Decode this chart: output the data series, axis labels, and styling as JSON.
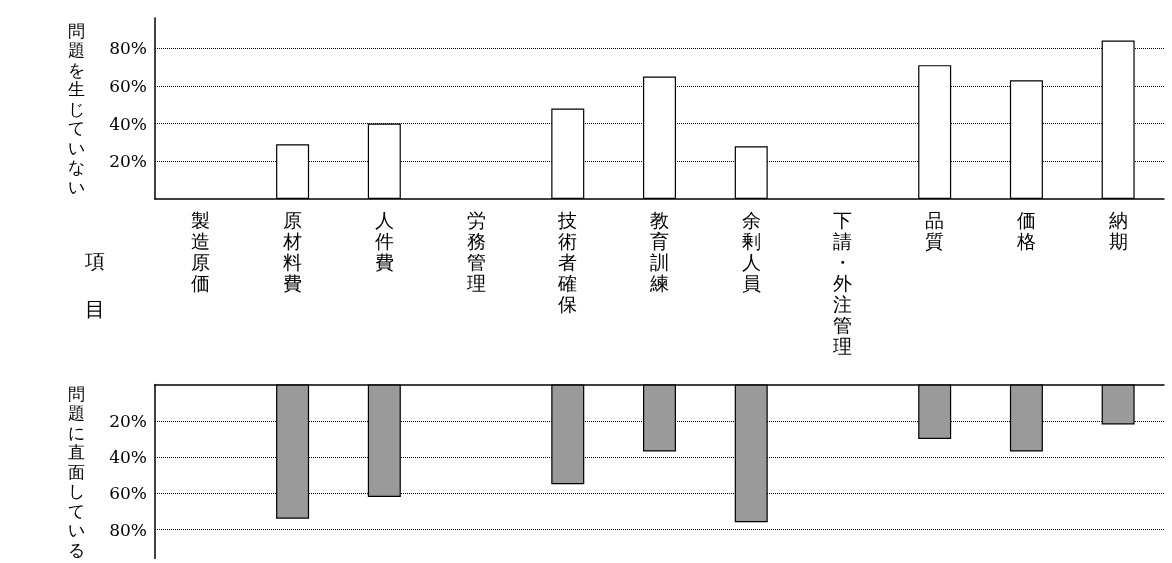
{
  "chart_data": [
    {
      "type": "bar",
      "ylabel": "問題を生じていない",
      "xlabel": "項目",
      "categories": [
        "製造原価",
        "原材料費",
        "人件費",
        "労務管理",
        "技術者確保",
        "教育訓練",
        "余剰人員",
        "下請・外注管理",
        "品質",
        "価格",
        "納期"
      ],
      "values": [
        null,
        29,
        40,
        null,
        48,
        65,
        28,
        null,
        71,
        63,
        84
      ],
      "color": "#ffffff",
      "ylim": [
        0,
        96
      ],
      "yticks": [
        {
          "value": 20,
          "label": "20%"
        },
        {
          "value": 40,
          "label": "40%"
        },
        {
          "value": 60,
          "label": "60%"
        },
        {
          "value": 80,
          "label": "80%"
        }
      ],
      "grid": "y"
    },
    {
      "type": "bar",
      "ylabel": "問題に直面している",
      "categories": [
        "製造原価",
        "原材料費",
        "人件費",
        "労務管理",
        "技術者確保",
        "教育訓練",
        "余剰人員",
        "下請・外注管理",
        "品質",
        "価格",
        "納期"
      ],
      "values": [
        null,
        74,
        62,
        null,
        55,
        37,
        76,
        null,
        30,
        37,
        22
      ],
      "color": "#9a9a9a",
      "ylim": [
        96,
        0
      ],
      "yticks": [
        {
          "value": 20,
          "label": "20%"
        },
        {
          "value": 40,
          "label": "40%"
        },
        {
          "value": 60,
          "label": "60%"
        },
        {
          "value": 80,
          "label": "80%"
        }
      ],
      "grid": "y",
      "tick_labels": "y"
    }
  ]
}
